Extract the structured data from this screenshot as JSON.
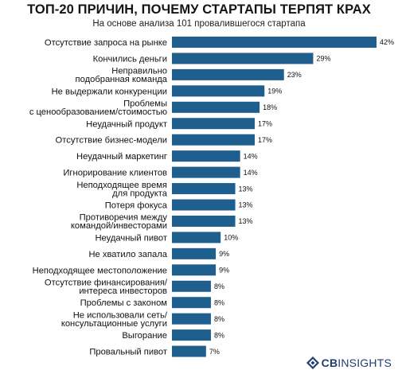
{
  "chart_data": {
    "type": "bar",
    "orientation": "horizontal",
    "title": "ТОП-20 ПРИЧИН, ПОЧЕМУ СТАРТАПЫ ТЕРПЯТ КРАХ",
    "subtitle": "На основе анализа 101 провалившегося стартапа",
    "categories": [
      [
        "Отсутствие запроса на рынке"
      ],
      [
        "Кончились деньги"
      ],
      [
        "Неправильно",
        "подобранная команда"
      ],
      [
        "Не выдержали конкуренции"
      ],
      [
        "Проблемы",
        "с ценообразованием/стоимостью"
      ],
      [
        "Неудачный продукт"
      ],
      [
        "Отсутствие бизнес-модели"
      ],
      [
        "Неудачный маркетинг"
      ],
      [
        "Игнорирование клиентов"
      ],
      [
        "Неподходящее время",
        "для продукта"
      ],
      [
        "Потеря фокуса"
      ],
      [
        "Противоречия между",
        "командой/инвесторами"
      ],
      [
        "Неудачный пивот"
      ],
      [
        "Не хватило запала"
      ],
      [
        "Неподходящее местоположение"
      ],
      [
        "Отсутствие финансирования/",
        "интереса инвесторов"
      ],
      [
        "Проблемы с законом"
      ],
      [
        "Не использовали сеть/",
        "консультационные услуги"
      ],
      [
        "Выгорание"
      ],
      [
        "Провальный пивот"
      ]
    ],
    "values": [
      42,
      29,
      23,
      19,
      18,
      17,
      17,
      14,
      14,
      13,
      13,
      13,
      10,
      9,
      9,
      8,
      8,
      8,
      8,
      7
    ],
    "value_labels": [
      "42%",
      "29%",
      "23%",
      "19%",
      "18%",
      "17%",
      "17%",
      "14%",
      "14%",
      "13%",
      "13%",
      "13%",
      "10%",
      "9%",
      "9%",
      "8%",
      "8%",
      "8%",
      "8%",
      "7%"
    ],
    "xlim": [
      0,
      42
    ],
    "grid": false,
    "legend": "none",
    "bar_color": "#1f5f8e"
  },
  "branding": {
    "logo_prefix": "CB",
    "logo_suffix": "INSIGHTS",
    "logo_color": "#1d3f6e",
    "logo_icon": "cb-logo-mark-icon"
  }
}
